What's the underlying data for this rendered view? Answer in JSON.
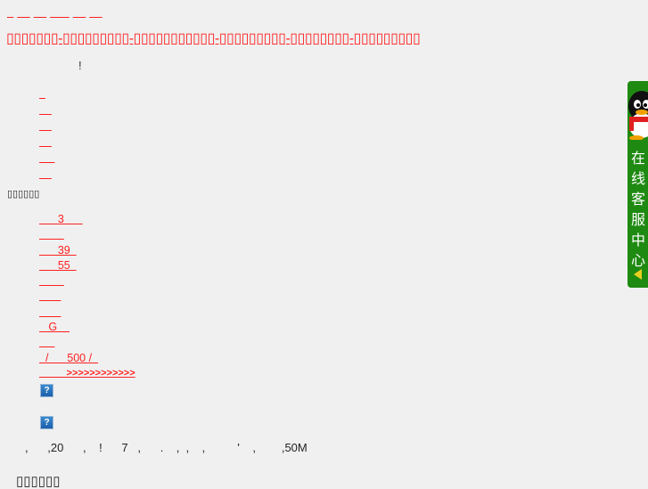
{
  "top_nav": [
    "  ",
    "    ",
    "    ",
    "      ",
    "    ",
    "    "
  ],
  "title_link": "▯▯▯▯▯▯▯-▯▯▯▯▯▯▯▯▯-▯▯▯▯▯▯▯▯▯▯▯-▯▯▯▯▯▯▯▯▯-▯▯▯▯▯▯▯▯-▯▯▯▯▯▯▯▯▯",
  "notice": "!",
  "nav_links": [
    "  ",
    "    ",
    "    ",
    "    ",
    "     ",
    "    "
  ],
  "section_heading": "▯▯▯▯▯▯",
  "section_links": [
    "      3      ",
    "        ",
    "      39  ",
    "      55  ",
    "        ",
    "       ",
    "       ",
    "   G    ",
    "     ",
    "  /      500 /  ",
    "          >>>>>>>>>>>>"
  ],
  "image_placeholders": [
    "?",
    "?"
  ],
  "footer_text": ",      ,20      ,    !      7   ,      .    ,  ,    ,          '    ,        ,50M",
  "bottom_heading": "▯▯▯▯▯▯",
  "qq_widget": {
    "label": [
      "在",
      "线",
      "客",
      "服",
      "中",
      "心"
    ],
    "color": "#1f8a12"
  },
  "colors": {
    "link": "#ff2020",
    "background": "#f0f0f0"
  }
}
